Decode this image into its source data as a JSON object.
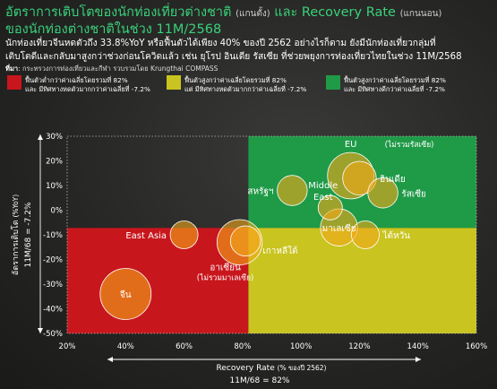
{
  "header": {
    "title_main": "อัตราการเติบโตของนักท่องเที่ยวต่างชาติ",
    "title_y_note": "(แกนตั้ง)",
    "title_and": " และ ",
    "title_rr": "Recovery Rate",
    "title_x_note": "(แกนนอน)",
    "title_line2": "ของนักท่องต่างชาติในช่วง 11M/2568",
    "subtitle_line1": "นักท่องเที่ยวจีนหดตัวถึง 33.8%YoY หรือฟื้นตัวได้เพียง 40% ของปี 2562 อย่างไรก็ตาม ยังมีนักท่องเที่ยวกลุ่มที่",
    "subtitle_line2": "เติบโตดีและกลับมาสูงกว่าช่วงก่อนโควิดแล้ว เช่น ยุโรป อินเดีย รัสเซีย ที่ช่วยพยุงการท่องเที่ยวไทยในช่วง 11M/2568",
    "source_label": "ที่มา",
    "source_text": ": กระทรวงการท่องเที่ยวและกีฬา รวบรวมโดย Krungthai COMPASS"
  },
  "legend": [
    {
      "color": "#c8161d",
      "line1": "ฟื้นตัวต่ำกว่าค่าเฉลี่ยโดยรวมที่ 82%",
      "line2": "และ มีทิศทางหดตัวมากกว่าค่าเฉลี่ยที่ -7.2%"
    },
    {
      "color": "#c9c41f",
      "line1": "ฟื้นตัวสูงกว่าค่าเฉลี่ยโดยรวมที่ 82%",
      "line2": "แต่ มีทิศทางหดตัวมากกว่าค่าเฉลี่ยที่ -7.2%"
    },
    {
      "color": "#1f9a47",
      "line1": "ฟื้นตัวสูงกว่าค่าเฉลี่ยโดยรวมที่ 82%",
      "line2": "และ มีทิศทางดีกว่าค่าเฉลี่ยที่ -7.2%"
    }
  ],
  "chart_data": {
    "type": "scatter",
    "xlabel": "Recovery Rate",
    "xlabel_note": "(% ของปี 2562)",
    "xlabel_avg": "11M/68 = 82%",
    "ylabel": "อัตราการเติบโต",
    "ylabel_note": "(%YoY)",
    "ylabel_avg": "11M/68 = -7.2%",
    "xlim": [
      20,
      160
    ],
    "ylim": [
      -50,
      30
    ],
    "x_ticks": [
      "20%",
      "40%",
      "60%",
      "80%",
      "100%",
      "120%",
      "140%",
      "160%"
    ],
    "y_ticks": [
      "30%",
      "20%",
      "10%",
      "0%",
      "-10%",
      "-20%",
      "-30%",
      "-40%",
      "-50%"
    ],
    "x_avg": 82,
    "y_avg": -7.2,
    "quadrant_colors": {
      "low_low": "#c8161d",
      "high_low": "#c9c41f",
      "high_high": "#1f9a47",
      "low_high": "#2b2b2a"
    },
    "bubble_color": "#f2a81a",
    "points": [
      {
        "name": "จีน",
        "x": 40,
        "y": -34,
        "size": 3,
        "label_pos": "center"
      },
      {
        "name": "East Asia",
        "x": 60,
        "y": -10,
        "size": 1,
        "label_pos": "left"
      },
      {
        "name": "อาเซียน",
        "sub": "(ไม่รวมมาเลเซีย)",
        "x": 79,
        "y": -13,
        "size": 2.5,
        "label_pos": "below-left"
      },
      {
        "name": "เกาหลีใต้",
        "x": 81,
        "y": -12.5,
        "size": 1.2,
        "label_pos": "below-right"
      },
      {
        "name": "มาเลเซีย",
        "x": 113,
        "y": -7,
        "size": 1.8,
        "label_pos": "center"
      },
      {
        "name": "ไต้หวัน",
        "x": 122,
        "y": -10,
        "size": 1,
        "label_pos": "right"
      },
      {
        "name": "Middle East",
        "x": 110,
        "y": 1,
        "size": 0.7,
        "label_pos": "left"
      },
      {
        "name": "สหรัฐฯ",
        "x": 97,
        "y": 8,
        "size": 1.2,
        "label_pos": "left"
      },
      {
        "name": "EU",
        "sub": "(ไม่รวมรัสเซีย)",
        "x": 117,
        "y": 14,
        "size": 2.6,
        "label_pos": "above"
      },
      {
        "name": "อินเดีย",
        "x": 120,
        "y": 13,
        "size": 1.5,
        "label_pos": "right"
      },
      {
        "name": "รัสเซีย",
        "x": 128,
        "y": 7,
        "size": 1.2,
        "label_pos": "right"
      }
    ]
  }
}
